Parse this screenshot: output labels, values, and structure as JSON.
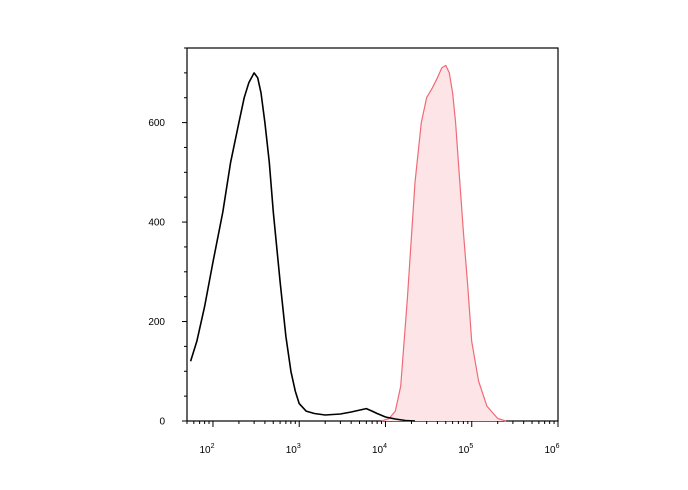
{
  "chart_data": {
    "type": "area",
    "title": "",
    "xlabel": "",
    "ylabel": "",
    "x_scale": "log",
    "xlim": [
      50,
      1000000
    ],
    "ylim": [
      0,
      750
    ],
    "grid": false,
    "y_ticks": [
      {
        "value": 0,
        "label": "0"
      },
      {
        "value": 200,
        "label": "200"
      },
      {
        "value": 400,
        "label": "400"
      },
      {
        "value": 600,
        "label": "600"
      }
    ],
    "x_ticks": [
      {
        "value": 100,
        "base": "10",
        "exp": "2"
      },
      {
        "value": 1000,
        "base": "10",
        "exp": "3"
      },
      {
        "value": 10000,
        "base": "10",
        "exp": "4"
      },
      {
        "value": 100000,
        "base": "10",
        "exp": "5"
      },
      {
        "value": 1000000,
        "base": "10",
        "exp": "6"
      }
    ],
    "series": [
      {
        "style": "line",
        "color": "#000000",
        "x": [
          55,
          65,
          80,
          100,
          130,
          160,
          200,
          230,
          260,
          300,
          330,
          360,
          400,
          450,
          500,
          600,
          700,
          800,
          900,
          1000,
          1200,
          1500,
          2000,
          3000,
          4000,
          5000,
          6000,
          7000,
          8000,
          10000,
          13000,
          17000,
          22000
        ],
        "y": [
          120,
          160,
          230,
          320,
          420,
          520,
          600,
          650,
          680,
          700,
          690,
          660,
          600,
          520,
          420,
          280,
          170,
          100,
          60,
          35,
          20,
          15,
          12,
          14,
          18,
          22,
          25,
          20,
          15,
          8,
          4,
          1,
          0
        ]
      },
      {
        "style": "filled",
        "color": "#ee6b77",
        "fill": "#fde4e6",
        "x": [
          9000,
          11000,
          13000,
          15000,
          18000,
          22000,
          26000,
          30000,
          35000,
          40000,
          45000,
          50000,
          55000,
          60000,
          65000,
          70000,
          80000,
          90000,
          100000,
          120000,
          150000,
          200000,
          250000
        ],
        "y": [
          0,
          5,
          20,
          70,
          250,
          480,
          600,
          650,
          670,
          690,
          710,
          715,
          700,
          660,
          600,
          520,
          380,
          270,
          160,
          80,
          30,
          5,
          0
        ]
      }
    ]
  }
}
